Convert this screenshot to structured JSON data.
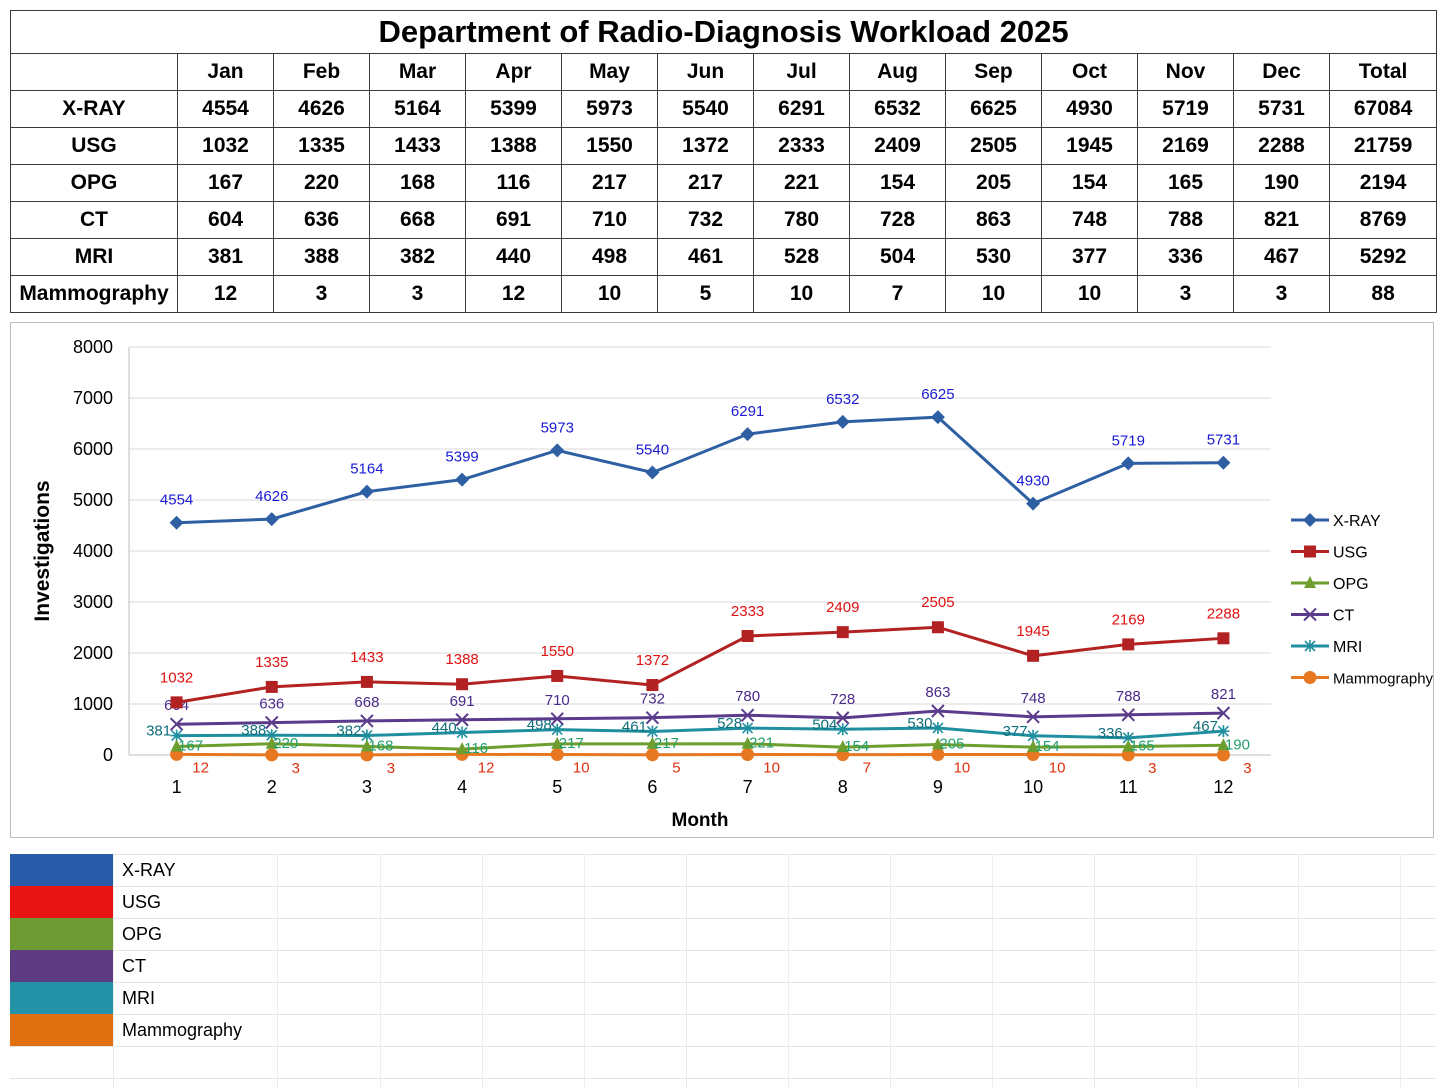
{
  "table": {
    "title": "Department of Radio-Diagnosis Workload 2025",
    "columns": [
      "Jan",
      "Feb",
      "Mar",
      "Apr",
      "May",
      "Jun",
      "Jul",
      "Aug",
      "Sep",
      "Oct",
      "Nov",
      "Dec",
      "Total"
    ],
    "rows": [
      {
        "label": "X-RAY",
        "values": [
          "4554",
          "4626",
          "5164",
          "5399",
          "5973",
          "5540",
          "6291",
          "6532",
          "6625",
          "4930",
          "5719",
          "5731",
          "67084"
        ]
      },
      {
        "label": "USG",
        "values": [
          "1032",
          "1335",
          "1433",
          "1388",
          "1550",
          "1372",
          "2333",
          "2409",
          "2505",
          "1945",
          "2169",
          "2288",
          "21759"
        ]
      },
      {
        "label": "OPG",
        "values": [
          "167",
          "220",
          "168",
          "116",
          "217",
          "217",
          "221",
          "154",
          "205",
          "154",
          "165",
          "190",
          "2194"
        ]
      },
      {
        "label": "CT",
        "values": [
          "604",
          "636",
          "668",
          "691",
          "710",
          "732",
          "780",
          "728",
          "863",
          "748",
          "788",
          "821",
          "8769"
        ]
      },
      {
        "label": "MRI",
        "values": [
          "381",
          "388",
          "382",
          "440",
          "498",
          "461",
          "528",
          "504",
          "530",
          "377",
          "336",
          "467",
          "5292"
        ]
      },
      {
        "label": "Mammography",
        "values": [
          "12",
          "3",
          "3",
          "12",
          "10",
          "5",
          "10",
          "7",
          "10",
          "10",
          "3",
          "3",
          "88"
        ]
      }
    ]
  },
  "chart_data": {
    "type": "line",
    "xlabel": "Month",
    "ylabel": "Investigations",
    "x": [
      1,
      2,
      3,
      4,
      5,
      6,
      7,
      8,
      9,
      10,
      11,
      12
    ],
    "ylim": [
      0,
      8000
    ],
    "yticks": [
      0,
      1000,
      2000,
      3000,
      4000,
      5000,
      6000,
      7000,
      8000
    ],
    "grid": true,
    "legend": "right",
    "series": [
      {
        "name": "X-RAY",
        "color": "#2E5FA3",
        "label_color": "#1a1ad6",
        "marker": "diamond",
        "values": [
          4554,
          4626,
          5164,
          5399,
          5973,
          5540,
          6291,
          6532,
          6625,
          4930,
          5719,
          5731
        ]
      },
      {
        "name": "USG",
        "color": "#B22222",
        "label_color": "#e01010",
        "marker": "square",
        "values": [
          1032,
          1335,
          1433,
          1388,
          1550,
          1372,
          2333,
          2409,
          2505,
          1945,
          2169,
          2288
        ]
      },
      {
        "name": "OPG",
        "color": "#6E9E2E",
        "label_color": "#22a06b",
        "marker": "triangle",
        "values": [
          167,
          220,
          168,
          116,
          217,
          217,
          221,
          154,
          205,
          154,
          165,
          190
        ]
      },
      {
        "name": "CT",
        "color": "#5A3A8A",
        "label_color": "#4a2a8a",
        "marker": "x",
        "values": [
          604,
          636,
          668,
          691,
          710,
          732,
          780,
          728,
          863,
          748,
          788,
          821
        ]
      },
      {
        "name": "MRI",
        "color": "#1F8FA0",
        "label_color": "#0e6e7a",
        "marker": "star",
        "values": [
          381,
          388,
          382,
          440,
          498,
          461,
          528,
          504,
          530,
          377,
          336,
          467
        ]
      },
      {
        "name": "Mammography",
        "color": "#E87722",
        "label_color": "#e03010",
        "marker": "circle",
        "values": [
          12,
          3,
          3,
          12,
          10,
          5,
          10,
          7,
          10,
          10,
          3,
          3
        ]
      }
    ]
  },
  "legend_blocks": [
    {
      "label": "X-RAY",
      "color": "#2A5BA8"
    },
    {
      "label": "USG",
      "color": "#E81414"
    },
    {
      "label": "OPG",
      "color": "#6E9A34"
    },
    {
      "label": "CT",
      "color": "#5C3B82"
    },
    {
      "label": "MRI",
      "color": "#2392A6"
    },
    {
      "label": "Mammography",
      "color": "#E0700F"
    }
  ]
}
